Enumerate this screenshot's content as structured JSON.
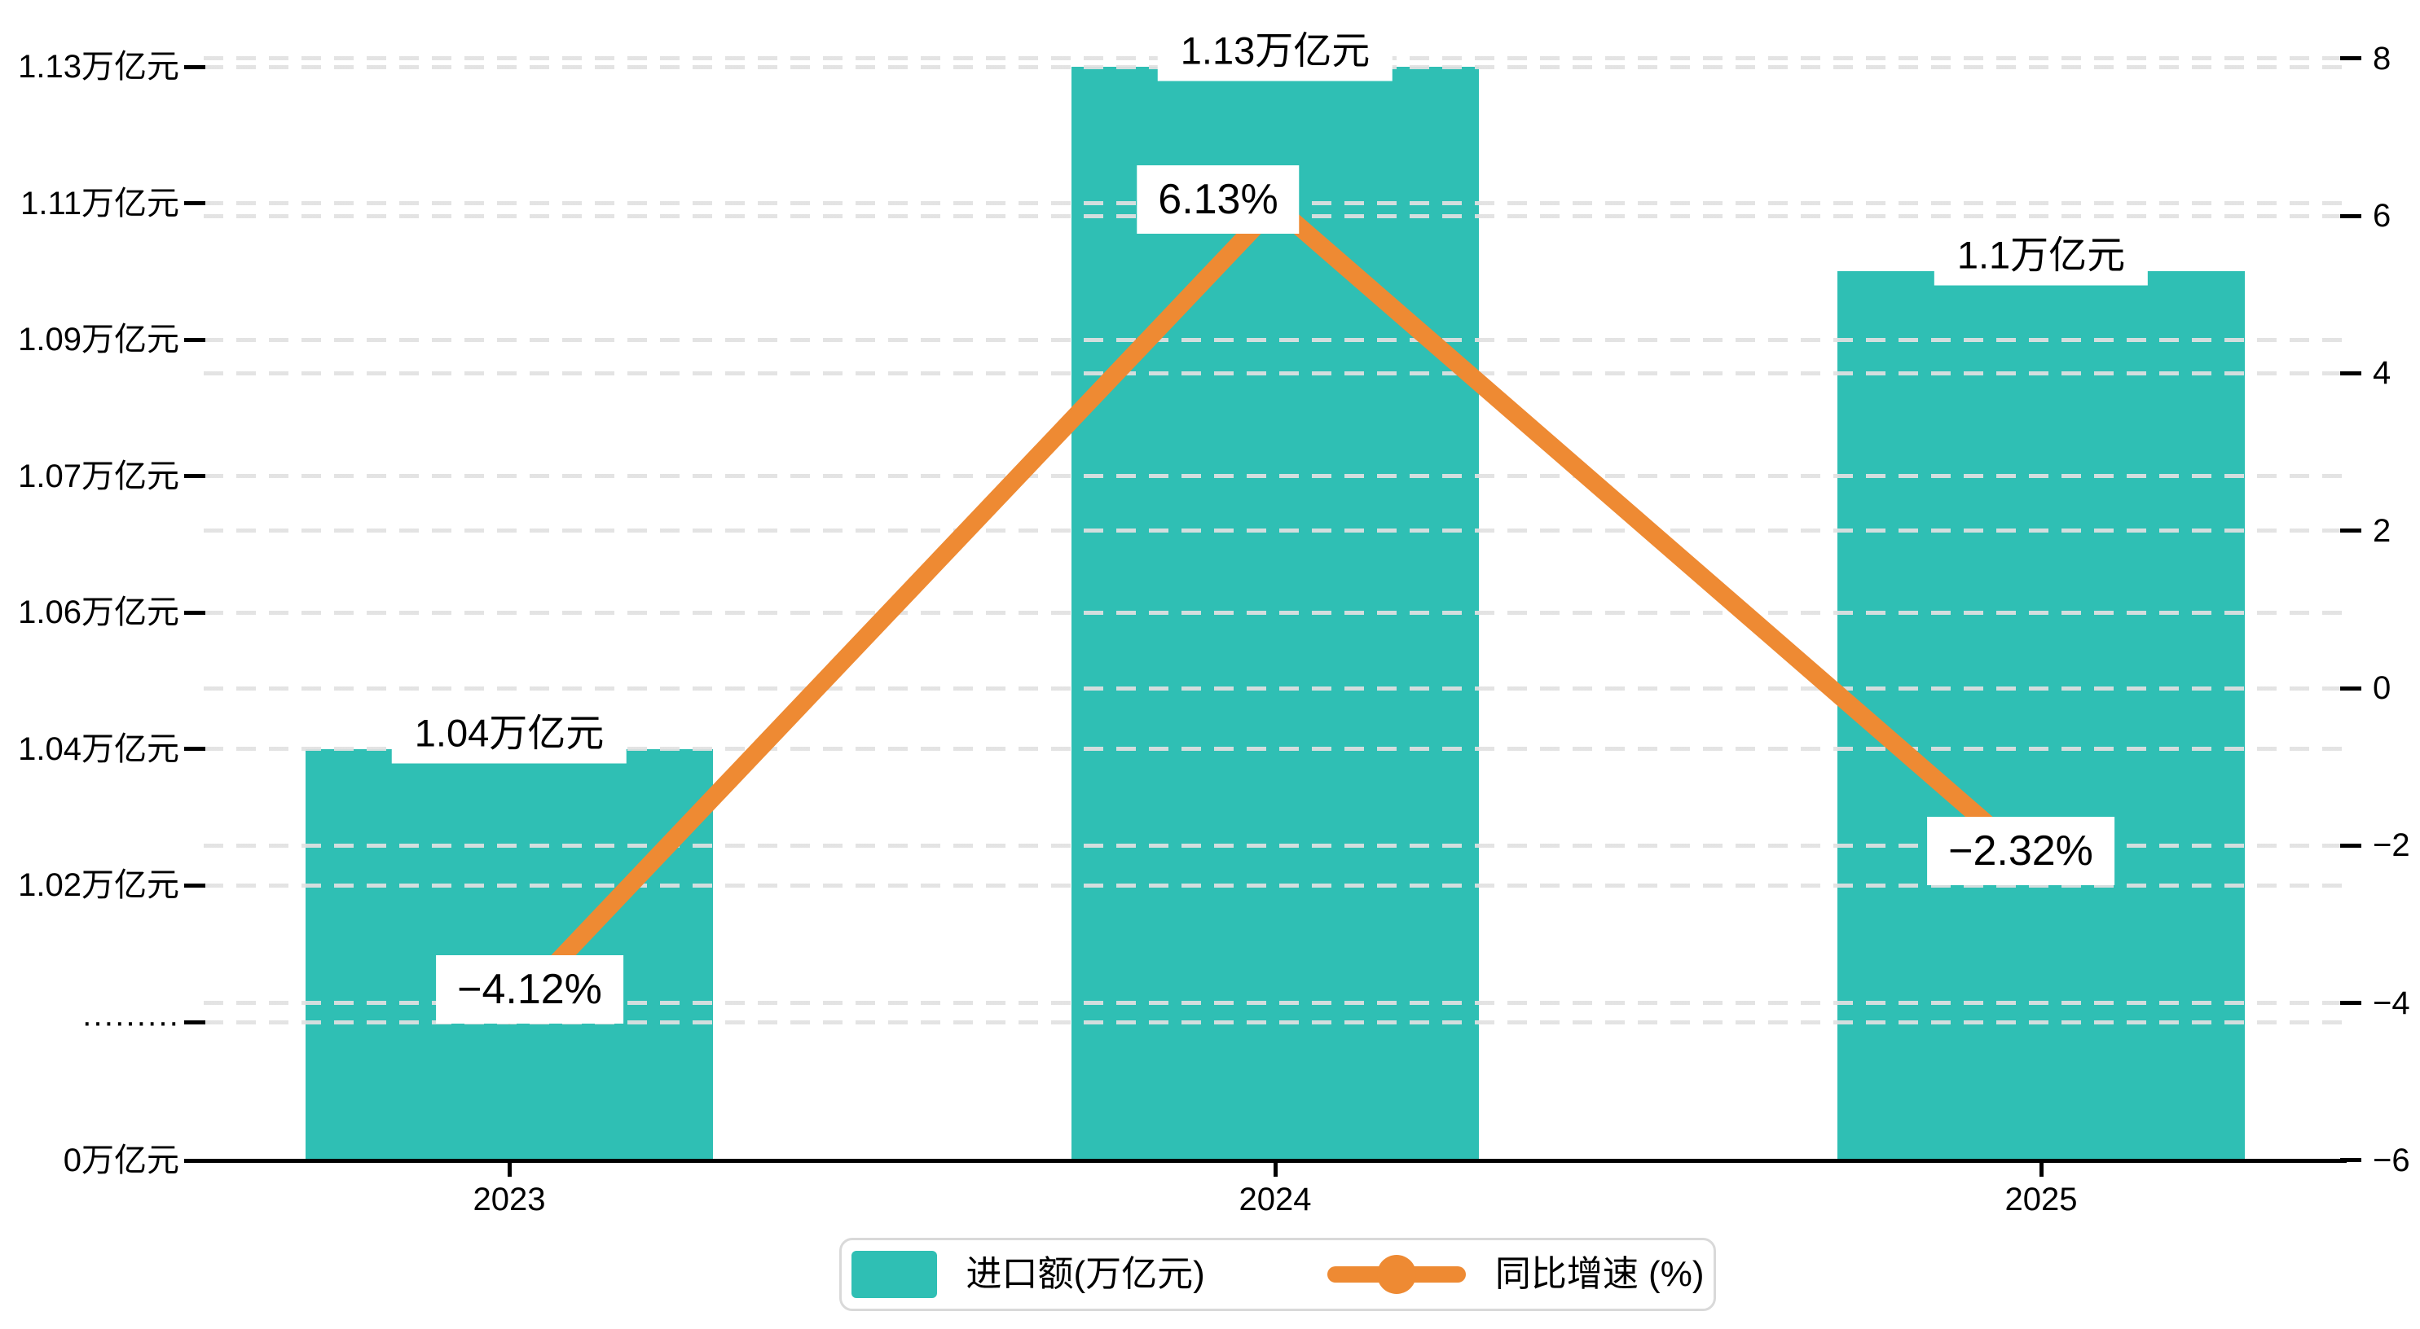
{
  "chart_data": {
    "type": "combo",
    "categories": [
      "2023",
      "2024",
      "2025"
    ],
    "series": [
      {
        "name": "进口额(万亿元)",
        "type": "bar",
        "axis": "left",
        "values": [
          1.04,
          1.13,
          1.1
        ],
        "labels": [
          "1.04万亿元",
          "1.13万亿元",
          "1.1万亿元"
        ],
        "color": "#2fbfb4"
      },
      {
        "name": "同比增速 (%)",
        "type": "line",
        "axis": "right",
        "values": [
          -4.12,
          6.13,
          -2.32
        ],
        "labels": [
          "−4.12%",
          "6.13%",
          "−2.32%"
        ],
        "color": "#ee8a33"
      }
    ],
    "left_axis": {
      "unit": "万亿元",
      "tick_labels_top_to_bottom": [
        "1.13万亿元",
        "1.11万亿元",
        "1.09万亿元",
        "1.07万亿元",
        "1.06万亿元",
        "1.04万亿元",
        "1.02万亿元",
        "·········",
        "0万亿元"
      ],
      "value_ticks": [
        1.13,
        1.11,
        1.09,
        1.07,
        1.06,
        1.04,
        1.02
      ],
      "break_marker": "·········",
      "zero_label": "0万亿元"
    },
    "right_axis": {
      "unit": "%",
      "tick_labels_top_to_bottom": [
        "8",
        "6",
        "4",
        "2",
        "0",
        "−2",
        "−4",
        "−6"
      ],
      "tick_values": [
        8,
        6,
        4,
        2,
        0,
        -2,
        -4,
        -6
      ],
      "range": [
        -6,
        8
      ]
    },
    "grid": "dashed-horizontal",
    "legend_position": "bottom-center"
  },
  "legend": {
    "bar_label": "进口额(万亿元)",
    "line_label": "同比增速 (%)"
  }
}
